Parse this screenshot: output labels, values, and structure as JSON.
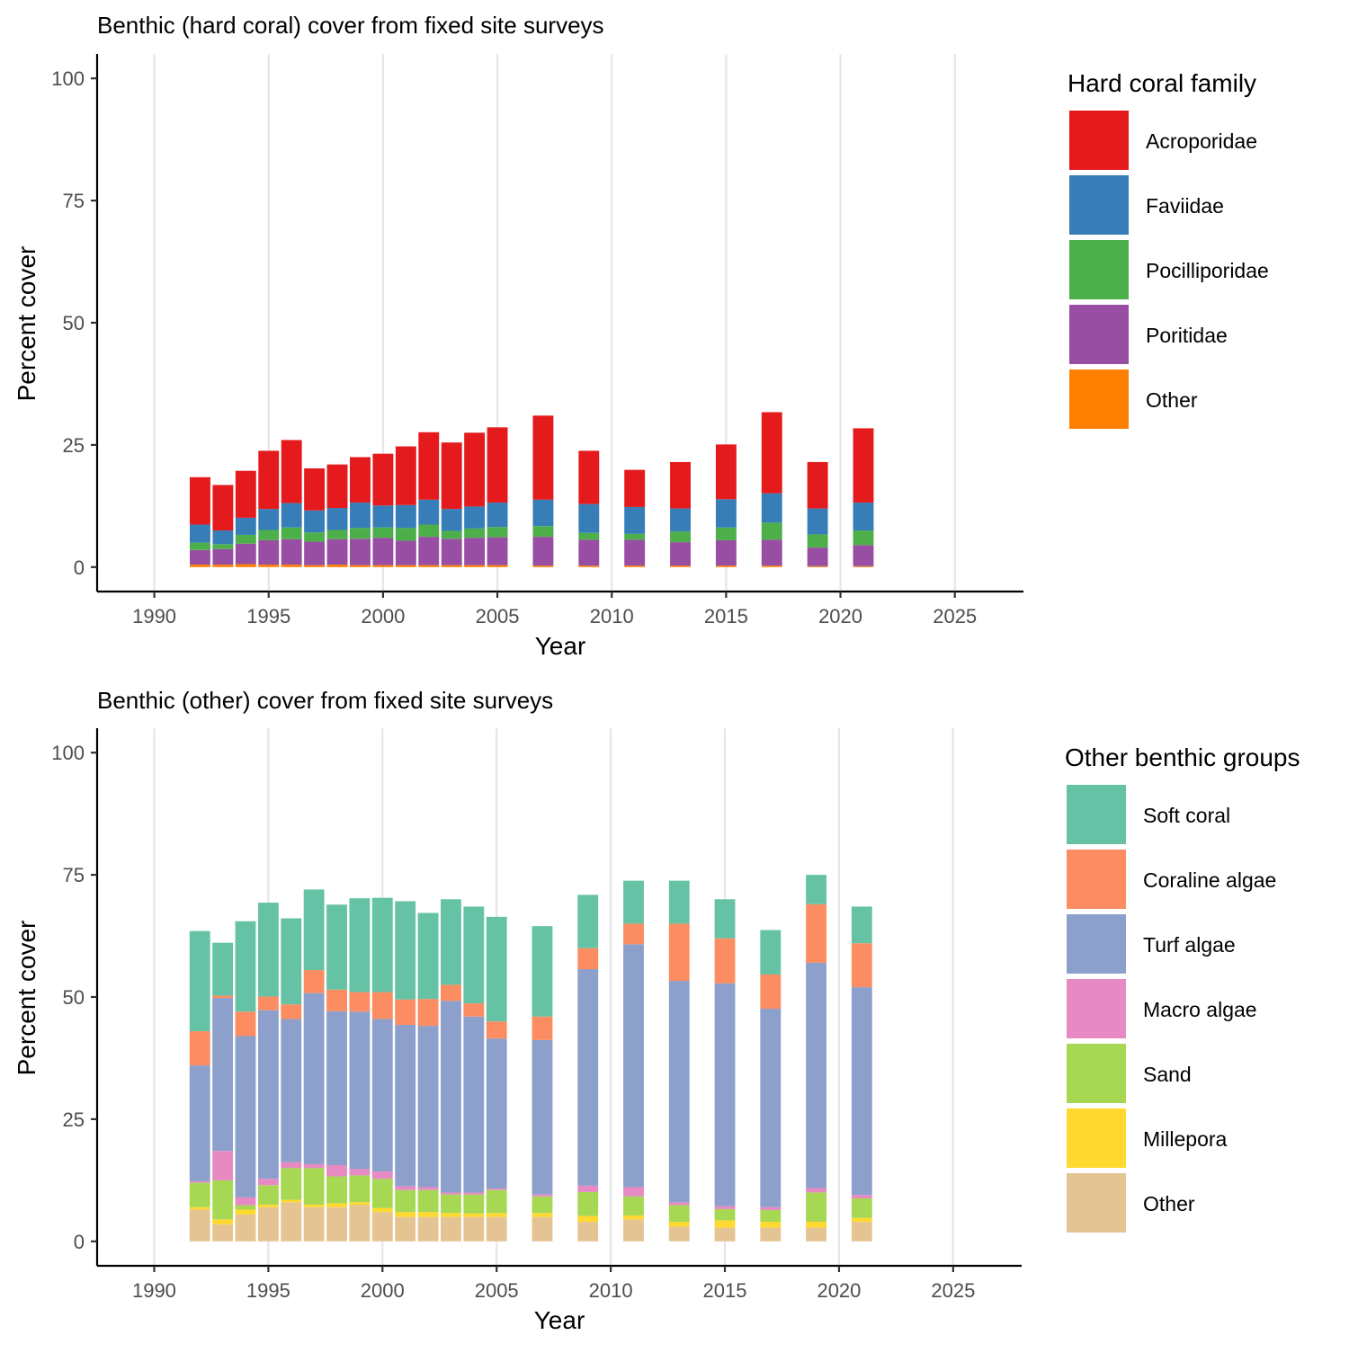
{
  "chart_data": [
    {
      "type": "bar",
      "stacked": true,
      "title": "Benthic (hard coral) cover from fixed site surveys",
      "xlabel": "Year",
      "ylabel": "Percent cover",
      "xlim": [
        1987.5,
        2028.0
      ],
      "ylim": [
        -5,
        105
      ],
      "xticks": [
        1990,
        1995,
        2000,
        2005,
        2010,
        2015,
        2020,
        2025
      ],
      "yticks": [
        0,
        25,
        50,
        75,
        100
      ],
      "grid": "vertical-major",
      "legend_title": "Hard coral family",
      "legend_position": "right",
      "x": [
        1992,
        1993,
        1994,
        1995,
        1996,
        1997,
        1998,
        1999,
        2000,
        2001,
        2002,
        2003,
        2004,
        2005,
        2007,
        2009,
        2011,
        2013,
        2015,
        2017,
        2019,
        2021
      ],
      "series": [
        {
          "name": "Other",
          "color": "#FF7F00",
          "values": [
            0.5,
            0.5,
            0.6,
            0.5,
            0.5,
            0.4,
            0.5,
            0.4,
            0.4,
            0.4,
            0.4,
            0.4,
            0.4,
            0.4,
            0.3,
            0.3,
            0.3,
            0.3,
            0.3,
            0.3,
            0.2,
            0.2
          ]
        },
        {
          "name": "Poritidae",
          "color": "#984EA3",
          "values": [
            3.0,
            3.2,
            4.2,
            5.0,
            5.2,
            4.8,
            5.2,
            5.4,
            5.6,
            5.0,
            5.8,
            5.4,
            5.6,
            5.7,
            5.9,
            5.3,
            5.3,
            4.8,
            5.2,
            5.3,
            3.8,
            4.3
          ]
        },
        {
          "name": "Pocilliporidae",
          "color": "#4DAF4A",
          "values": [
            1.5,
            1.0,
            1.8,
            2.1,
            2.4,
            1.9,
            1.9,
            2.2,
            2.1,
            2.6,
            2.5,
            1.6,
            1.9,
            2.1,
            2.2,
            1.4,
            1.2,
            2.2,
            2.6,
            3.5,
            2.7,
            3.0
          ]
        },
        {
          "name": "Faviidae",
          "color": "#377EB8",
          "values": [
            3.7,
            2.8,
            3.5,
            4.3,
            5.0,
            4.5,
            4.5,
            5.2,
            4.5,
            4.7,
            5.1,
            4.5,
            4.5,
            5.0,
            5.4,
            5.9,
            5.5,
            4.7,
            5.8,
            6.0,
            5.3,
            5.7
          ]
        },
        {
          "name": "Acroporidae",
          "color": "#E41A1C",
          "values": [
            9.7,
            9.3,
            9.6,
            11.9,
            12.9,
            8.6,
            8.9,
            9.3,
            10.6,
            12.0,
            13.8,
            13.6,
            15.1,
            15.4,
            17.2,
            10.9,
            7.6,
            9.5,
            11.2,
            16.6,
            9.5,
            15.2
          ]
        }
      ],
      "legend_order": [
        "Acroporidae",
        "Faviidae",
        "Pocilliporidae",
        "Poritidae",
        "Other"
      ]
    },
    {
      "type": "bar",
      "stacked": true,
      "title": "Benthic (other) cover from fixed site surveys",
      "xlabel": "Year",
      "ylabel": "Percent cover",
      "xlim": [
        1987.5,
        2028.0
      ],
      "ylim": [
        -5,
        105
      ],
      "xticks": [
        1990,
        1995,
        2000,
        2005,
        2010,
        2015,
        2020,
        2025
      ],
      "yticks": [
        0,
        25,
        50,
        75,
        100
      ],
      "grid": "vertical-major",
      "legend_title": "Other benthic groups",
      "legend_position": "right",
      "x": [
        1992,
        1993,
        1994,
        1995,
        1996,
        1997,
        1998,
        1999,
        2000,
        2001,
        2002,
        2003,
        2004,
        2005,
        2007,
        2009,
        2011,
        2013,
        2015,
        2017,
        2019,
        2021
      ],
      "series": [
        {
          "name": "Other",
          "color": "#E5C494",
          "values": [
            6.5,
            3.5,
            5.5,
            7.0,
            8.0,
            7.0,
            7.0,
            7.5,
            6.0,
            5.0,
            5.0,
            5.0,
            5.0,
            5.0,
            5.0,
            4.0,
            4.5,
            3.0,
            2.8,
            2.8,
            2.8,
            4.0
          ]
        },
        {
          "name": "Millepora",
          "color": "#FFD92F",
          "values": [
            0.5,
            1.0,
            1.0,
            0.5,
            0.5,
            0.5,
            0.8,
            0.5,
            0.8,
            1.0,
            1.0,
            0.8,
            0.7,
            0.8,
            0.8,
            1.2,
            0.8,
            1.0,
            1.5,
            1.2,
            1.2,
            0.8
          ]
        },
        {
          "name": "Sand",
          "color": "#A6D854",
          "values": [
            5.0,
            8.0,
            0.9,
            4.0,
            6.5,
            7.5,
            5.5,
            5.5,
            6.0,
            4.5,
            4.5,
            3.8,
            3.9,
            4.7,
            3.4,
            4.9,
            3.9,
            3.4,
            2.3,
            2.4,
            6.0,
            4.0
          ]
        },
        {
          "name": "Macro algae",
          "color": "#E78AC3",
          "values": [
            0.3,
            6.0,
            1.6,
            1.3,
            1.2,
            0.8,
            2.3,
            1.3,
            1.5,
            0.8,
            0.6,
            0.4,
            0.4,
            0.3,
            0.4,
            1.3,
            1.9,
            0.6,
            0.6,
            0.6,
            0.9,
            0.7
          ]
        },
        {
          "name": "Turf algae",
          "color": "#8DA0CB",
          "values": [
            23.7,
            31.3,
            33.0,
            34.5,
            29.3,
            35.0,
            31.5,
            32.2,
            31.2,
            33.0,
            33.0,
            39.2,
            36.0,
            30.7,
            31.6,
            44.3,
            49.7,
            45.3,
            45.6,
            40.6,
            46.1,
            42.5
          ]
        },
        {
          "name": "Coraline algae",
          "color": "#FC8D62",
          "values": [
            7.0,
            0.5,
            5.0,
            2.8,
            3.0,
            4.7,
            4.4,
            4.0,
            5.5,
            5.2,
            5.5,
            3.3,
            2.7,
            3.5,
            4.8,
            4.3,
            4.2,
            11.7,
            9.2,
            7.0,
            12.0,
            9.0
          ]
        },
        {
          "name": "Soft coral",
          "color": "#66C2A5",
          "values": [
            20.5,
            10.8,
            18.5,
            19.2,
            17.6,
            16.5,
            17.4,
            19.2,
            19.3,
            20.1,
            17.6,
            17.5,
            19.8,
            21.4,
            18.5,
            10.9,
            8.8,
            8.8,
            8.0,
            9.1,
            6.0,
            7.5
          ]
        }
      ],
      "legend_order": [
        "Soft coral",
        "Coraline algae",
        "Turf algae",
        "Macro algae",
        "Sand",
        "Millepora",
        "Other"
      ]
    }
  ]
}
